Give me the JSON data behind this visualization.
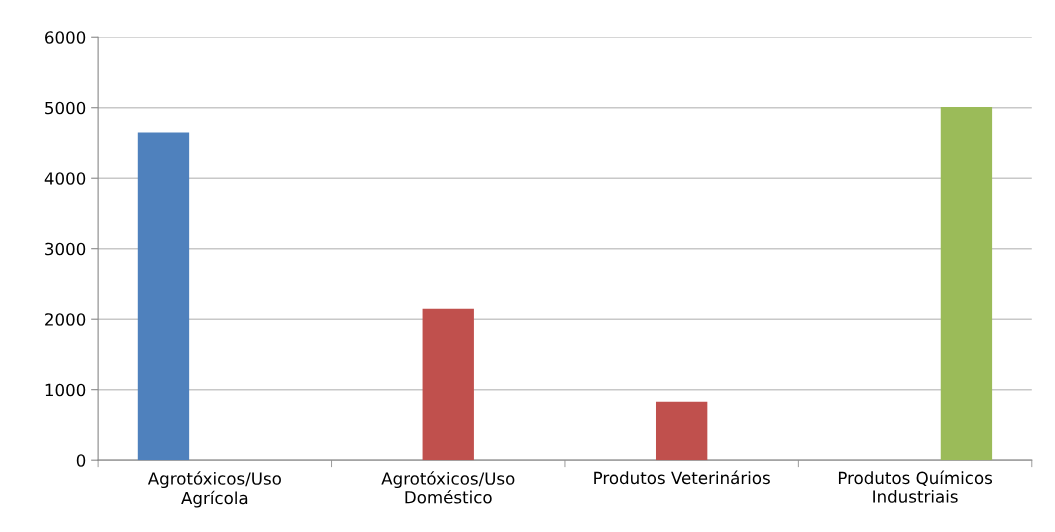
{
  "chart_data": {
    "type": "bar",
    "categories": [
      "Agrotóxicos/Uso\nAgrícola",
      "Agrotóxicos/Uso\nDoméstico",
      "Produtos Veterinários",
      "Produtos Químicos\nIndustriais"
    ],
    "series": [
      {
        "color": "#4f81bd",
        "values": [
          4650,
          null,
          null,
          null
        ]
      },
      {
        "color": "#c0504d",
        "values": [
          null,
          2150,
          830,
          null
        ]
      },
      {
        "color": "#9bbb59",
        "values": [
          null,
          null,
          null,
          5010
        ]
      }
    ],
    "ylim": [
      0,
      6000
    ],
    "yticks": [
      0,
      1000,
      2000,
      3000,
      4000,
      5000,
      6000
    ],
    "grid": "y",
    "legend": false
  }
}
